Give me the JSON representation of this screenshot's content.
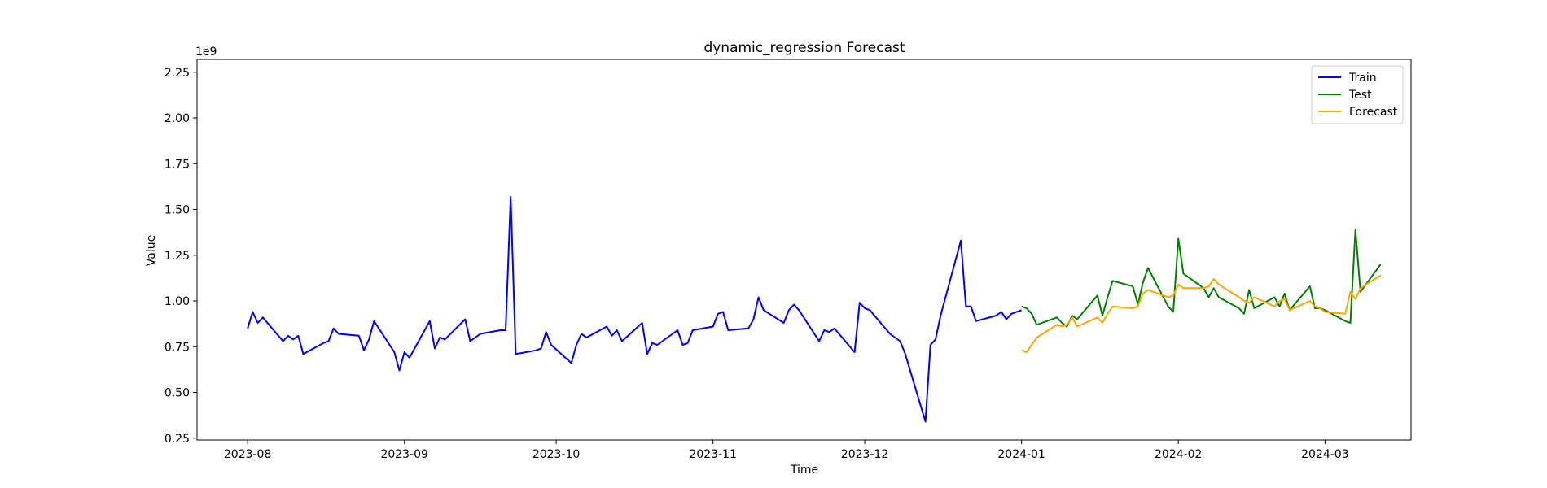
{
  "chart_data": {
    "type": "line",
    "title": "dynamic_regression Forecast",
    "xlabel": "Time",
    "ylabel": "Value",
    "y_offset_label": "1e9",
    "x_type": "date",
    "xlim": [
      "2023-07-22",
      "2024-03-18"
    ],
    "ylim": [
      0.24,
      2.32
    ],
    "x_ticks": [
      "2023-08-01",
      "2023-09-01",
      "2023-10-01",
      "2023-11-01",
      "2023-12-01",
      "2024-01-01",
      "2024-02-01",
      "2024-03-01"
    ],
    "x_tick_labels": [
      "2023-08",
      "2023-09",
      "2023-10",
      "2023-11",
      "2023-12",
      "2024-01",
      "2024-02",
      "2024-03"
    ],
    "y_ticks": [
      0.25,
      0.5,
      0.75,
      1.0,
      1.25,
      1.5,
      1.75,
      2.0,
      2.25
    ],
    "y_tick_labels": [
      "0.25",
      "0.50",
      "0.75",
      "1.00",
      "1.25",
      "1.50",
      "1.75",
      "2.00",
      "2.25"
    ],
    "grid": false,
    "legend_position": "top-right",
    "series": [
      {
        "name": "Train",
        "color": "#0000ff",
        "x": [
          "2023-08-01",
          "2023-08-02",
          "2023-08-03",
          "2023-08-04",
          "2023-08-08",
          "2023-08-09",
          "2023-08-10",
          "2023-08-11",
          "2023-08-12",
          "2023-08-16",
          "2023-08-17",
          "2023-08-18",
          "2023-08-19",
          "2023-08-23",
          "2023-08-24",
          "2023-08-25",
          "2023-08-26",
          "2023-08-30",
          "2023-08-31",
          "2023-09-01",
          "2023-09-02",
          "2023-09-06",
          "2023-09-07",
          "2023-09-08",
          "2023-09-09",
          "2023-09-13",
          "2023-09-14",
          "2023-09-15",
          "2023-09-16",
          "2023-09-20",
          "2023-09-21",
          "2023-09-22",
          "2023-09-23",
          "2023-09-27",
          "2023-09-28",
          "2023-09-29",
          "2023-09-30",
          "2023-10-04",
          "2023-10-05",
          "2023-10-06",
          "2023-10-07",
          "2023-10-11",
          "2023-10-12",
          "2023-10-13",
          "2023-10-14",
          "2023-10-18",
          "2023-10-19",
          "2023-10-20",
          "2023-10-21",
          "2023-10-25",
          "2023-10-26",
          "2023-10-27",
          "2023-10-28",
          "2023-11-01",
          "2023-11-02",
          "2023-11-03",
          "2023-11-04",
          "2023-11-08",
          "2023-11-09",
          "2023-11-10",
          "2023-11-11",
          "2023-11-15",
          "2023-11-16",
          "2023-11-17",
          "2023-11-18",
          "2023-11-22",
          "2023-11-23",
          "2023-11-24",
          "2023-11-25",
          "2023-11-29",
          "2023-11-30",
          "2023-12-01",
          "2023-12-02",
          "2023-12-06",
          "2023-12-07",
          "2023-12-08",
          "2023-12-09",
          "2023-12-13",
          "2023-12-14",
          "2023-12-15",
          "2023-12-16",
          "2023-12-20",
          "2023-12-21",
          "2023-12-22",
          "2023-12-23",
          "2023-12-27",
          "2023-12-28",
          "2023-12-29",
          "2023-12-30",
          "2024-01-01"
        ],
        "values": [
          0.85,
          0.94,
          0.88,
          0.91,
          0.78,
          0.81,
          0.79,
          0.81,
          0.71,
          0.77,
          0.78,
          0.85,
          0.82,
          0.81,
          0.73,
          0.79,
          0.89,
          0.72,
          0.62,
          0.72,
          0.69,
          0.89,
          0.74,
          0.8,
          0.79,
          0.9,
          0.78,
          0.8,
          0.82,
          0.84,
          0.84,
          1.57,
          0.71,
          0.73,
          0.74,
          0.83,
          0.76,
          0.66,
          0.76,
          0.82,
          0.8,
          0.86,
          0.81,
          0.84,
          0.78,
          0.88,
          0.71,
          0.77,
          0.76,
          0.84,
          0.76,
          0.77,
          0.84,
          0.86,
          0.93,
          0.94,
          0.84,
          0.85,
          0.9,
          1.02,
          0.95,
          0.88,
          0.95,
          0.98,
          0.95,
          0.78,
          0.84,
          0.83,
          0.85,
          0.72,
          0.99,
          0.96,
          0.95,
          0.82,
          0.8,
          0.78,
          0.71,
          0.34,
          0.76,
          0.79,
          0.92,
          1.33,
          0.97,
          0.97,
          0.89,
          0.92,
          0.94,
          0.9,
          0.93,
          0.95
        ]
      },
      {
        "name": "Test",
        "color": "#008000",
        "x": [
          "2024-01-01",
          "2024-01-02",
          "2024-01-03",
          "2024-01-04",
          "2024-01-08",
          "2024-01-09",
          "2024-01-10",
          "2024-01-11",
          "2024-01-12",
          "2024-01-16",
          "2024-01-17",
          "2024-01-18",
          "2024-01-19",
          "2024-01-23",
          "2024-01-24",
          "2024-01-25",
          "2024-01-26",
          "2024-01-30",
          "2024-01-31",
          "2024-02-01",
          "2024-02-02",
          "2024-02-06",
          "2024-02-07",
          "2024-02-08",
          "2024-02-09",
          "2024-02-13",
          "2024-02-14",
          "2024-02-15",
          "2024-02-16",
          "2024-02-20",
          "2024-02-21",
          "2024-02-22",
          "2024-02-23",
          "2024-02-27",
          "2024-02-28",
          "2024-02-29",
          "2024-03-01",
          "2024-03-05",
          "2024-03-06",
          "2024-03-07",
          "2024-03-08",
          "2024-03-12"
        ],
        "values": [
          0.97,
          0.96,
          0.93,
          0.87,
          0.91,
          0.88,
          0.86,
          0.92,
          0.9,
          1.03,
          0.92,
          1.02,
          1.11,
          1.08,
          0.98,
          1.1,
          1.18,
          0.97,
          0.94,
          1.34,
          1.15,
          1.07,
          1.02,
          1.07,
          1.02,
          0.96,
          0.93,
          1.06,
          0.96,
          1.02,
          0.97,
          1.04,
          0.95,
          1.08,
          0.96,
          0.96,
          0.95,
          0.89,
          0.88,
          1.39,
          1.05,
          1.2
        ]
      },
      {
        "name": "Forecast",
        "color": "#ffa500",
        "x": [
          "2024-01-01",
          "2024-01-02",
          "2024-01-03",
          "2024-01-04",
          "2024-01-08",
          "2024-01-09",
          "2024-01-10",
          "2024-01-11",
          "2024-01-12",
          "2024-01-16",
          "2024-01-17",
          "2024-01-18",
          "2024-01-19",
          "2024-01-23",
          "2024-01-24",
          "2024-01-25",
          "2024-01-26",
          "2024-01-30",
          "2024-01-31",
          "2024-02-01",
          "2024-02-02",
          "2024-02-06",
          "2024-02-07",
          "2024-02-08",
          "2024-02-09",
          "2024-02-13",
          "2024-02-14",
          "2024-02-15",
          "2024-02-16",
          "2024-02-20",
          "2024-02-21",
          "2024-02-22",
          "2024-02-23",
          "2024-02-27",
          "2024-02-28",
          "2024-02-29",
          "2024-03-01",
          "2024-03-05",
          "2024-03-06",
          "2024-03-07",
          "2024-03-08",
          "2024-03-12"
        ],
        "values": [
          0.73,
          0.72,
          0.76,
          0.8,
          0.87,
          0.86,
          0.87,
          0.91,
          0.86,
          0.91,
          0.88,
          0.93,
          0.97,
          0.96,
          0.97,
          1.04,
          1.06,
          1.02,
          1.03,
          1.09,
          1.07,
          1.07,
          1.08,
          1.12,
          1.09,
          1.02,
          1.0,
          0.99,
          1.02,
          0.97,
          1.0,
          1.01,
          0.95,
          1.0,
          0.97,
          0.96,
          0.94,
          0.93,
          1.05,
          1.01,
          1.07,
          1.14
        ]
      }
    ]
  }
}
